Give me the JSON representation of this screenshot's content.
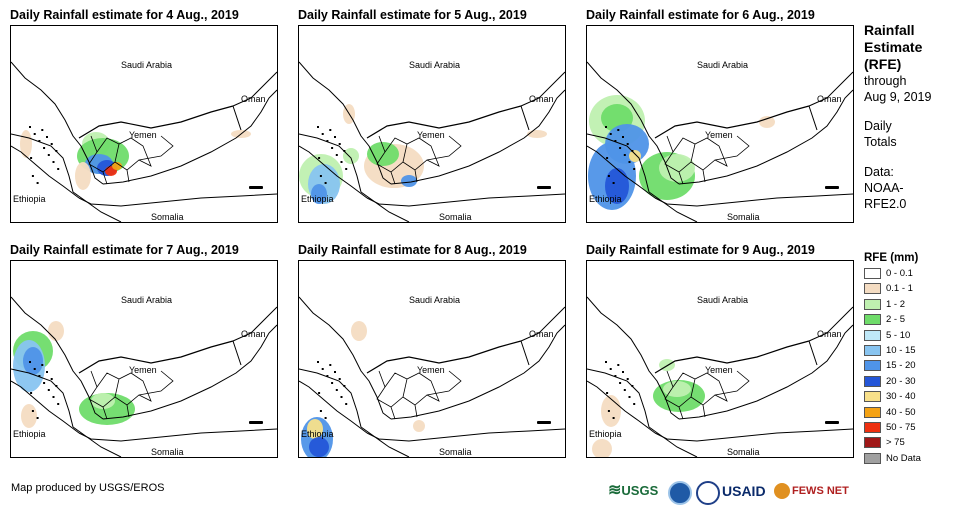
{
  "panels": [
    {
      "title": "Daily Rainfall estimate for 4 Aug., 2019"
    },
    {
      "title": "Daily Rainfall estimate for 5 Aug., 2019"
    },
    {
      "title": "Daily Rainfall estimate for 6 Aug., 2019"
    },
    {
      "title": "Daily Rainfall estimate for 7 Aug., 2019"
    },
    {
      "title": "Daily Rainfall estimate for 8 Aug., 2019"
    },
    {
      "title": "Daily Rainfall estimate for 9 Aug., 2019"
    }
  ],
  "map_labels": {
    "saudi": "Saudi Arabia",
    "oman": "Oman",
    "yemen": "Yemen",
    "ethiopia": "Ethiopia",
    "somalia": "Somalia"
  },
  "side": {
    "title_line1": "Rainfall",
    "title_line2": "Estimate",
    "title_line3": "(RFE)",
    "through": "through",
    "date": "Aug 9, 2019",
    "daily1": "Daily",
    "daily2": "Totals",
    "data1": "Data:",
    "data2": "NOAA-",
    "data3": "RFE2.0"
  },
  "legend": {
    "title": "RFE (mm)",
    "items": [
      {
        "label": "0 - 0.1",
        "color": "#ffffff"
      },
      {
        "label": "0.1 - 1",
        "color": "#f4dcc2"
      },
      {
        "label": "1 - 2",
        "color": "#bff0b0"
      },
      {
        "label": "2 - 5",
        "color": "#6fdc6a"
      },
      {
        "label": "5 - 10",
        "color": "#bfe8f8"
      },
      {
        "label": "10 - 15",
        "color": "#88c4f0"
      },
      {
        "label": "15 - 20",
        "color": "#4f94e8"
      },
      {
        "label": "20 - 30",
        "color": "#2456d8"
      },
      {
        "label": "30 - 40",
        "color": "#f8e08a"
      },
      {
        "label": "40 - 50",
        "color": "#f4a214"
      },
      {
        "label": "50 - 75",
        "color": "#ee3010"
      },
      {
        "label": "> 75",
        "color": "#a01818"
      },
      {
        "label": "No Data",
        "color": "#a0a0a0"
      }
    ]
  },
  "credit": "Map produced by USGS/EROS",
  "logos": {
    "usgs": "USGS",
    "usaid": "USAID",
    "fewsnet": "FEWS NET"
  }
}
